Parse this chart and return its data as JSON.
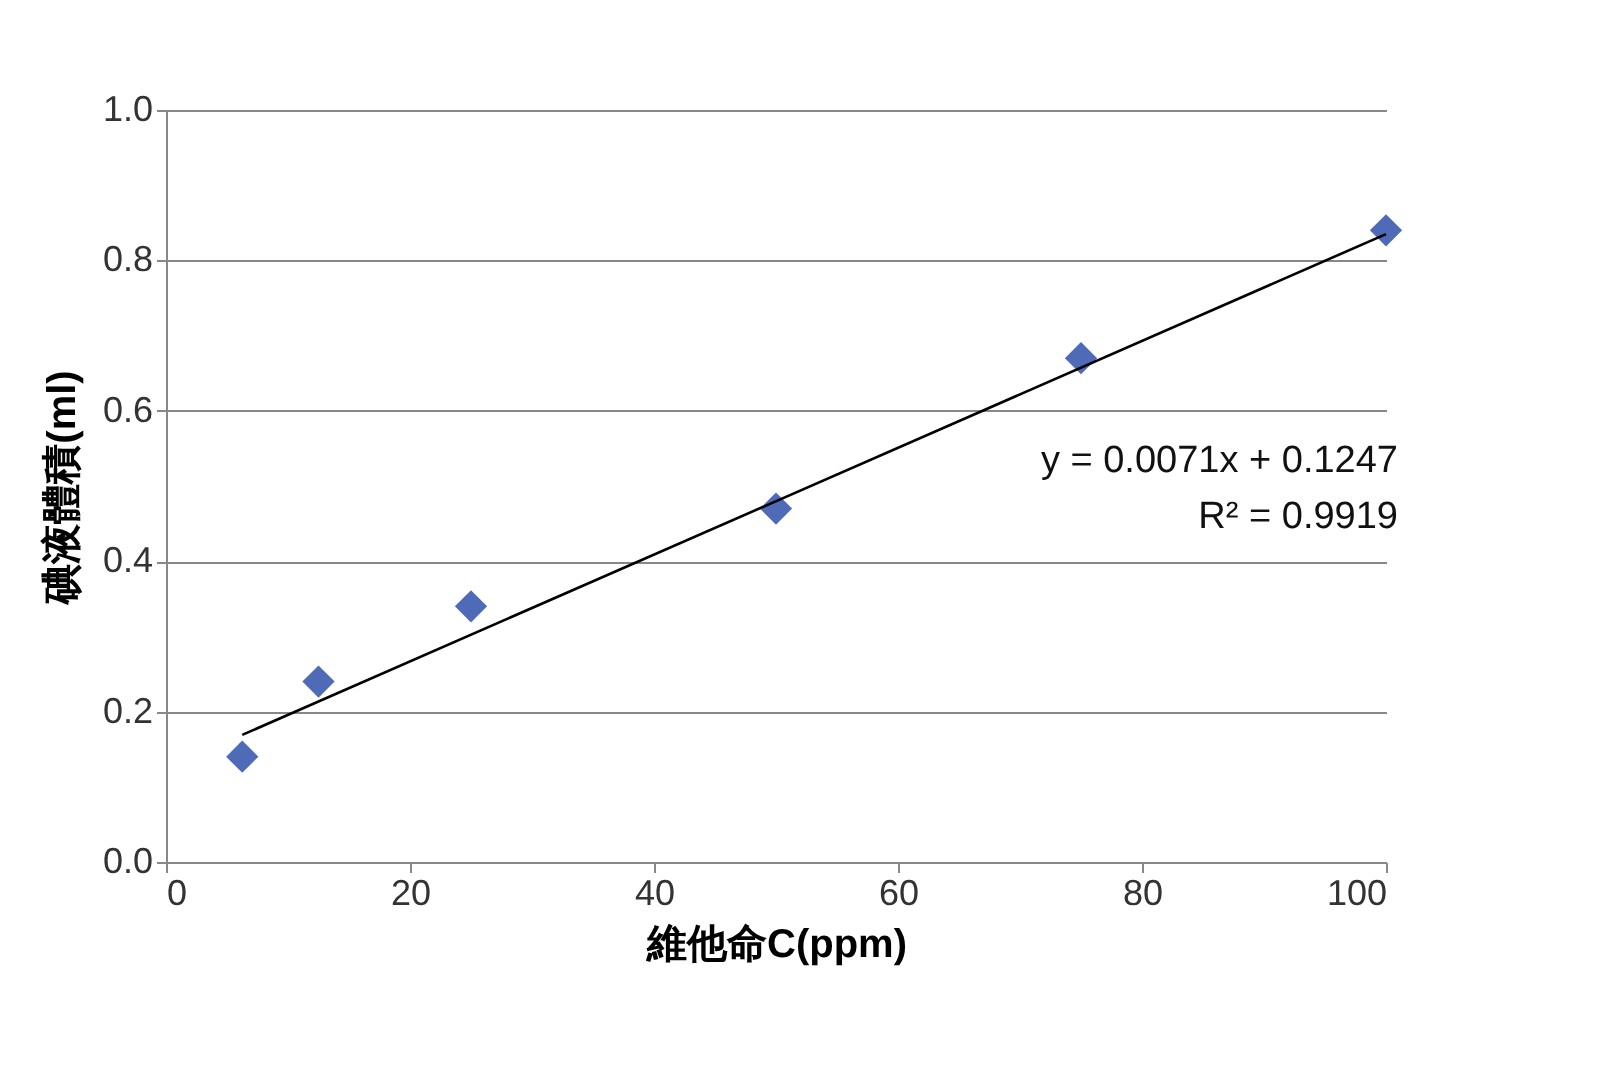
{
  "chart_data": {
    "type": "scatter",
    "xlabel": "維他命C(ppm)",
    "ylabel": "碘液體積(ml)",
    "x": [
      6.25,
      12.5,
      25,
      50,
      75,
      100
    ],
    "series": [
      {
        "color": "#4f6bb8",
        "values": [
          0.14,
          0.24,
          0.34,
          0.47,
          0.67,
          0.84
        ],
        "marker": "diamond"
      },
      {
        "type": "line",
        "color": "#000000",
        "x": [
          6.25,
          100
        ],
        "values": [
          0.169,
          0.835
        ],
        "marker": "none"
      }
    ],
    "xlim": [
      0,
      100
    ],
    "xticks": [
      0,
      20,
      40,
      60,
      80,
      100
    ],
    "ylim": [
      0,
      1
    ],
    "yticks": [
      {
        "value": 0,
        "label": "0.0"
      },
      {
        "value": 0.2,
        "label": "0.2"
      },
      {
        "value": 0.4,
        "label": "0.4"
      },
      {
        "value": 0.6,
        "label": "0.6"
      },
      {
        "value": 0.8,
        "label": "0.8"
      },
      {
        "value": 1,
        "label": "1.0"
      }
    ],
    "grid": "y",
    "annotations": [
      "y = 0.0071x + 0.1247",
      "R² = 0.9919"
    ]
  }
}
